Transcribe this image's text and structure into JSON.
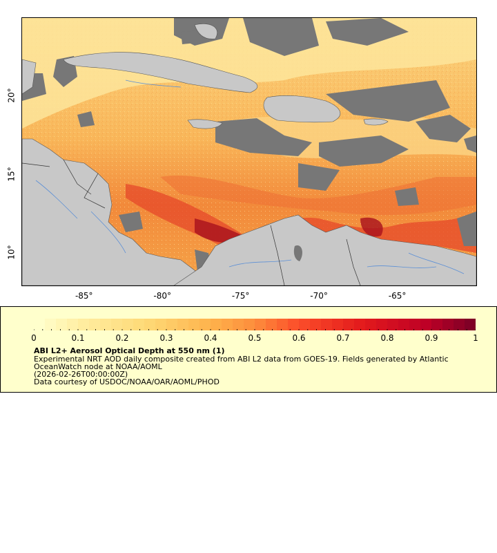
{
  "map": {
    "y_ticks": [
      {
        "label": "20°",
        "lat": 20
      },
      {
        "label": "15°",
        "lat": 15
      },
      {
        "label": "10°",
        "lat": 10
      }
    ],
    "x_ticks": [
      {
        "label": "-85°",
        "lon": -85
      },
      {
        "label": "-80°",
        "lon": -80
      },
      {
        "label": "-75°",
        "lon": -75
      },
      {
        "label": "-70°",
        "lon": -70
      },
      {
        "label": "-65°",
        "lon": -65
      }
    ],
    "lon_range": [
      -89,
      -60
    ],
    "lat_range": [
      8,
      25
    ]
  },
  "legend": {
    "colorbar_ticks": [
      "0",
      "0.1",
      "0.2",
      "0.3",
      "0.4",
      "0.5",
      "0.6",
      "0.7",
      "0.8",
      "0.9",
      "1"
    ],
    "colorbar_range": [
      0,
      1
    ],
    "title": "ABI L2+ Aerosol Optical Depth at 550 nm (1)",
    "line1": "Experimental NRT AOD daily composite created from ABI L2 data from GOES-19. Fields generated by Atlantic",
    "line2": "OceanWatch node at NOAA/AOML",
    "line3": "(2026-02-26T00:00:00Z)",
    "line4": "Data courtesy of USDOC/NOAA/OAR/AOML/PHOD"
  },
  "colors": {
    "land": "#c8c8c8",
    "no_data": "#777777",
    "low_aod": "#fde08f",
    "mid_aod": "#f58f3c",
    "high_aod": "#c0161e",
    "panel_bg": "#ffffcc"
  }
}
